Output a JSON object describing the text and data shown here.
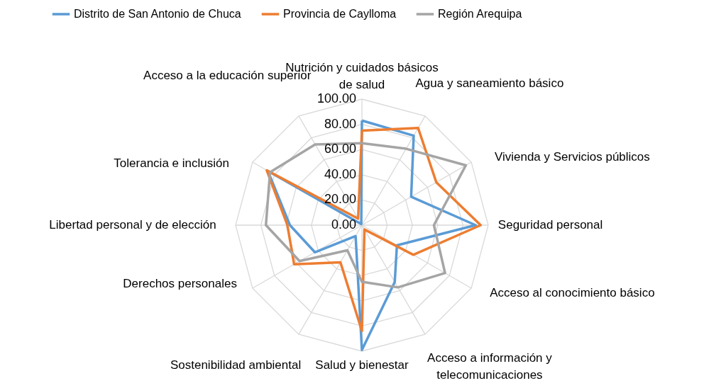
{
  "chart_data": {
    "type": "radar",
    "categories": [
      "Nutrición y cuidados básicos de salud",
      "Agua y saneamiento básico",
      "Vivienda y Servicios públicos",
      "Seguridad personal",
      "Acceso al conocimiento básico",
      "Acceso a información y telecomunicaciones",
      "Salud y bienestar",
      "Sostenibilidad ambiental",
      "Derechos personales",
      "Libertad personal y de elección",
      "Tolerancia e inclusión",
      "Acceso a la educación superior"
    ],
    "series": [
      {
        "name": "Distrito de San Antonio de Chuca",
        "color": "#5b9bd5",
        "values": [
          83,
          82,
          45,
          90,
          32,
          52,
          99,
          10,
          43,
          57,
          86,
          1
        ]
      },
      {
        "name": "Provincia de Caylloma",
        "color": "#ed7d31",
        "values": [
          75,
          89,
          68,
          94,
          47,
          4,
          84,
          34,
          62,
          59,
          87,
          6
        ]
      },
      {
        "name": "Región Arequipa",
        "color": "#a5a5a5",
        "values": [
          65,
          70,
          95,
          57,
          76,
          57,
          45,
          23,
          57,
          76,
          84,
          74
        ]
      }
    ],
    "ylim": [
      0,
      100
    ],
    "yticks": [
      {
        "value": 0,
        "label": "0.00"
      },
      {
        "value": 20,
        "label": "20.00"
      },
      {
        "value": 40,
        "label": "40.00"
      },
      {
        "value": 60,
        "label": "60.00"
      },
      {
        "value": 80,
        "label": "80.00"
      },
      {
        "value": 100,
        "label": "100.00"
      }
    ],
    "grid": true,
    "legend": "top"
  }
}
